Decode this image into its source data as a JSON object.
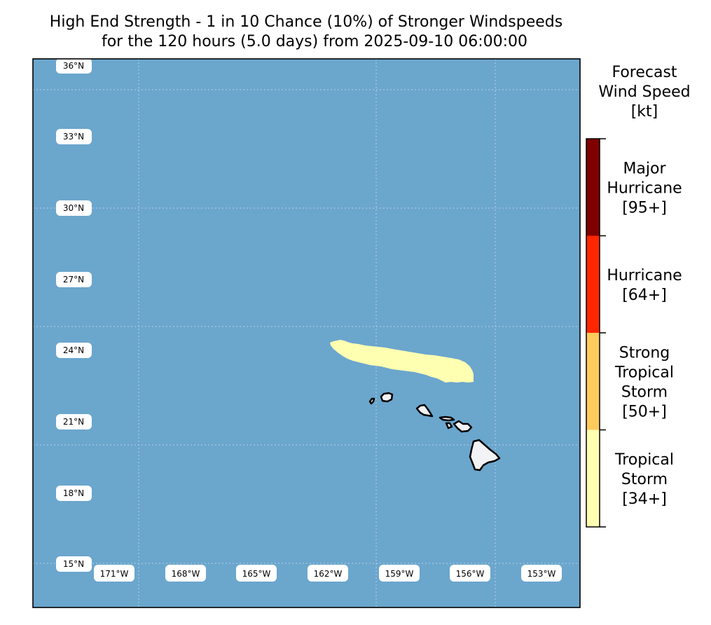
{
  "title": {
    "line1": "High End Strength - 1 in 10 Chance (10%) of Stronger Windspeeds",
    "line2": "for the 120 hours (5.0 days) from 2025-09-10 06:00:00"
  },
  "map": {
    "ocean_color": "#6BA6CD",
    "land_color": "#F1F3F4",
    "coastline_color": "#000000",
    "gridline_color": "#D4E3EE",
    "lat_labels": [
      "36°N",
      "33°N",
      "30°N",
      "27°N",
      "24°N",
      "21°N",
      "18°N",
      "15°N"
    ],
    "lon_labels": [
      "171°W",
      "168°W",
      "165°W",
      "162°W",
      "159°W",
      "156°W",
      "153°W"
    ],
    "wind_swath_category": "Tropical Storm [34+]",
    "wind_swath_color": "#FFFFB2"
  },
  "legend": {
    "title_lines": [
      "Forecast",
      "Wind Speed",
      "[kt]"
    ],
    "categories": [
      {
        "lines": [
          "Major",
          "Hurricane",
          "[95+]"
        ],
        "color": "#800000"
      },
      {
        "lines": [
          "Hurricane",
          "[64+]"
        ],
        "color": "#FF2600"
      },
      {
        "lines": [
          "Strong",
          "Tropical",
          "Storm",
          "[50+]"
        ],
        "color": "#FECB5C"
      },
      {
        "lines": [
          "Tropical",
          "Storm",
          "[34+]"
        ],
        "color": "#FFFFB2"
      }
    ]
  }
}
